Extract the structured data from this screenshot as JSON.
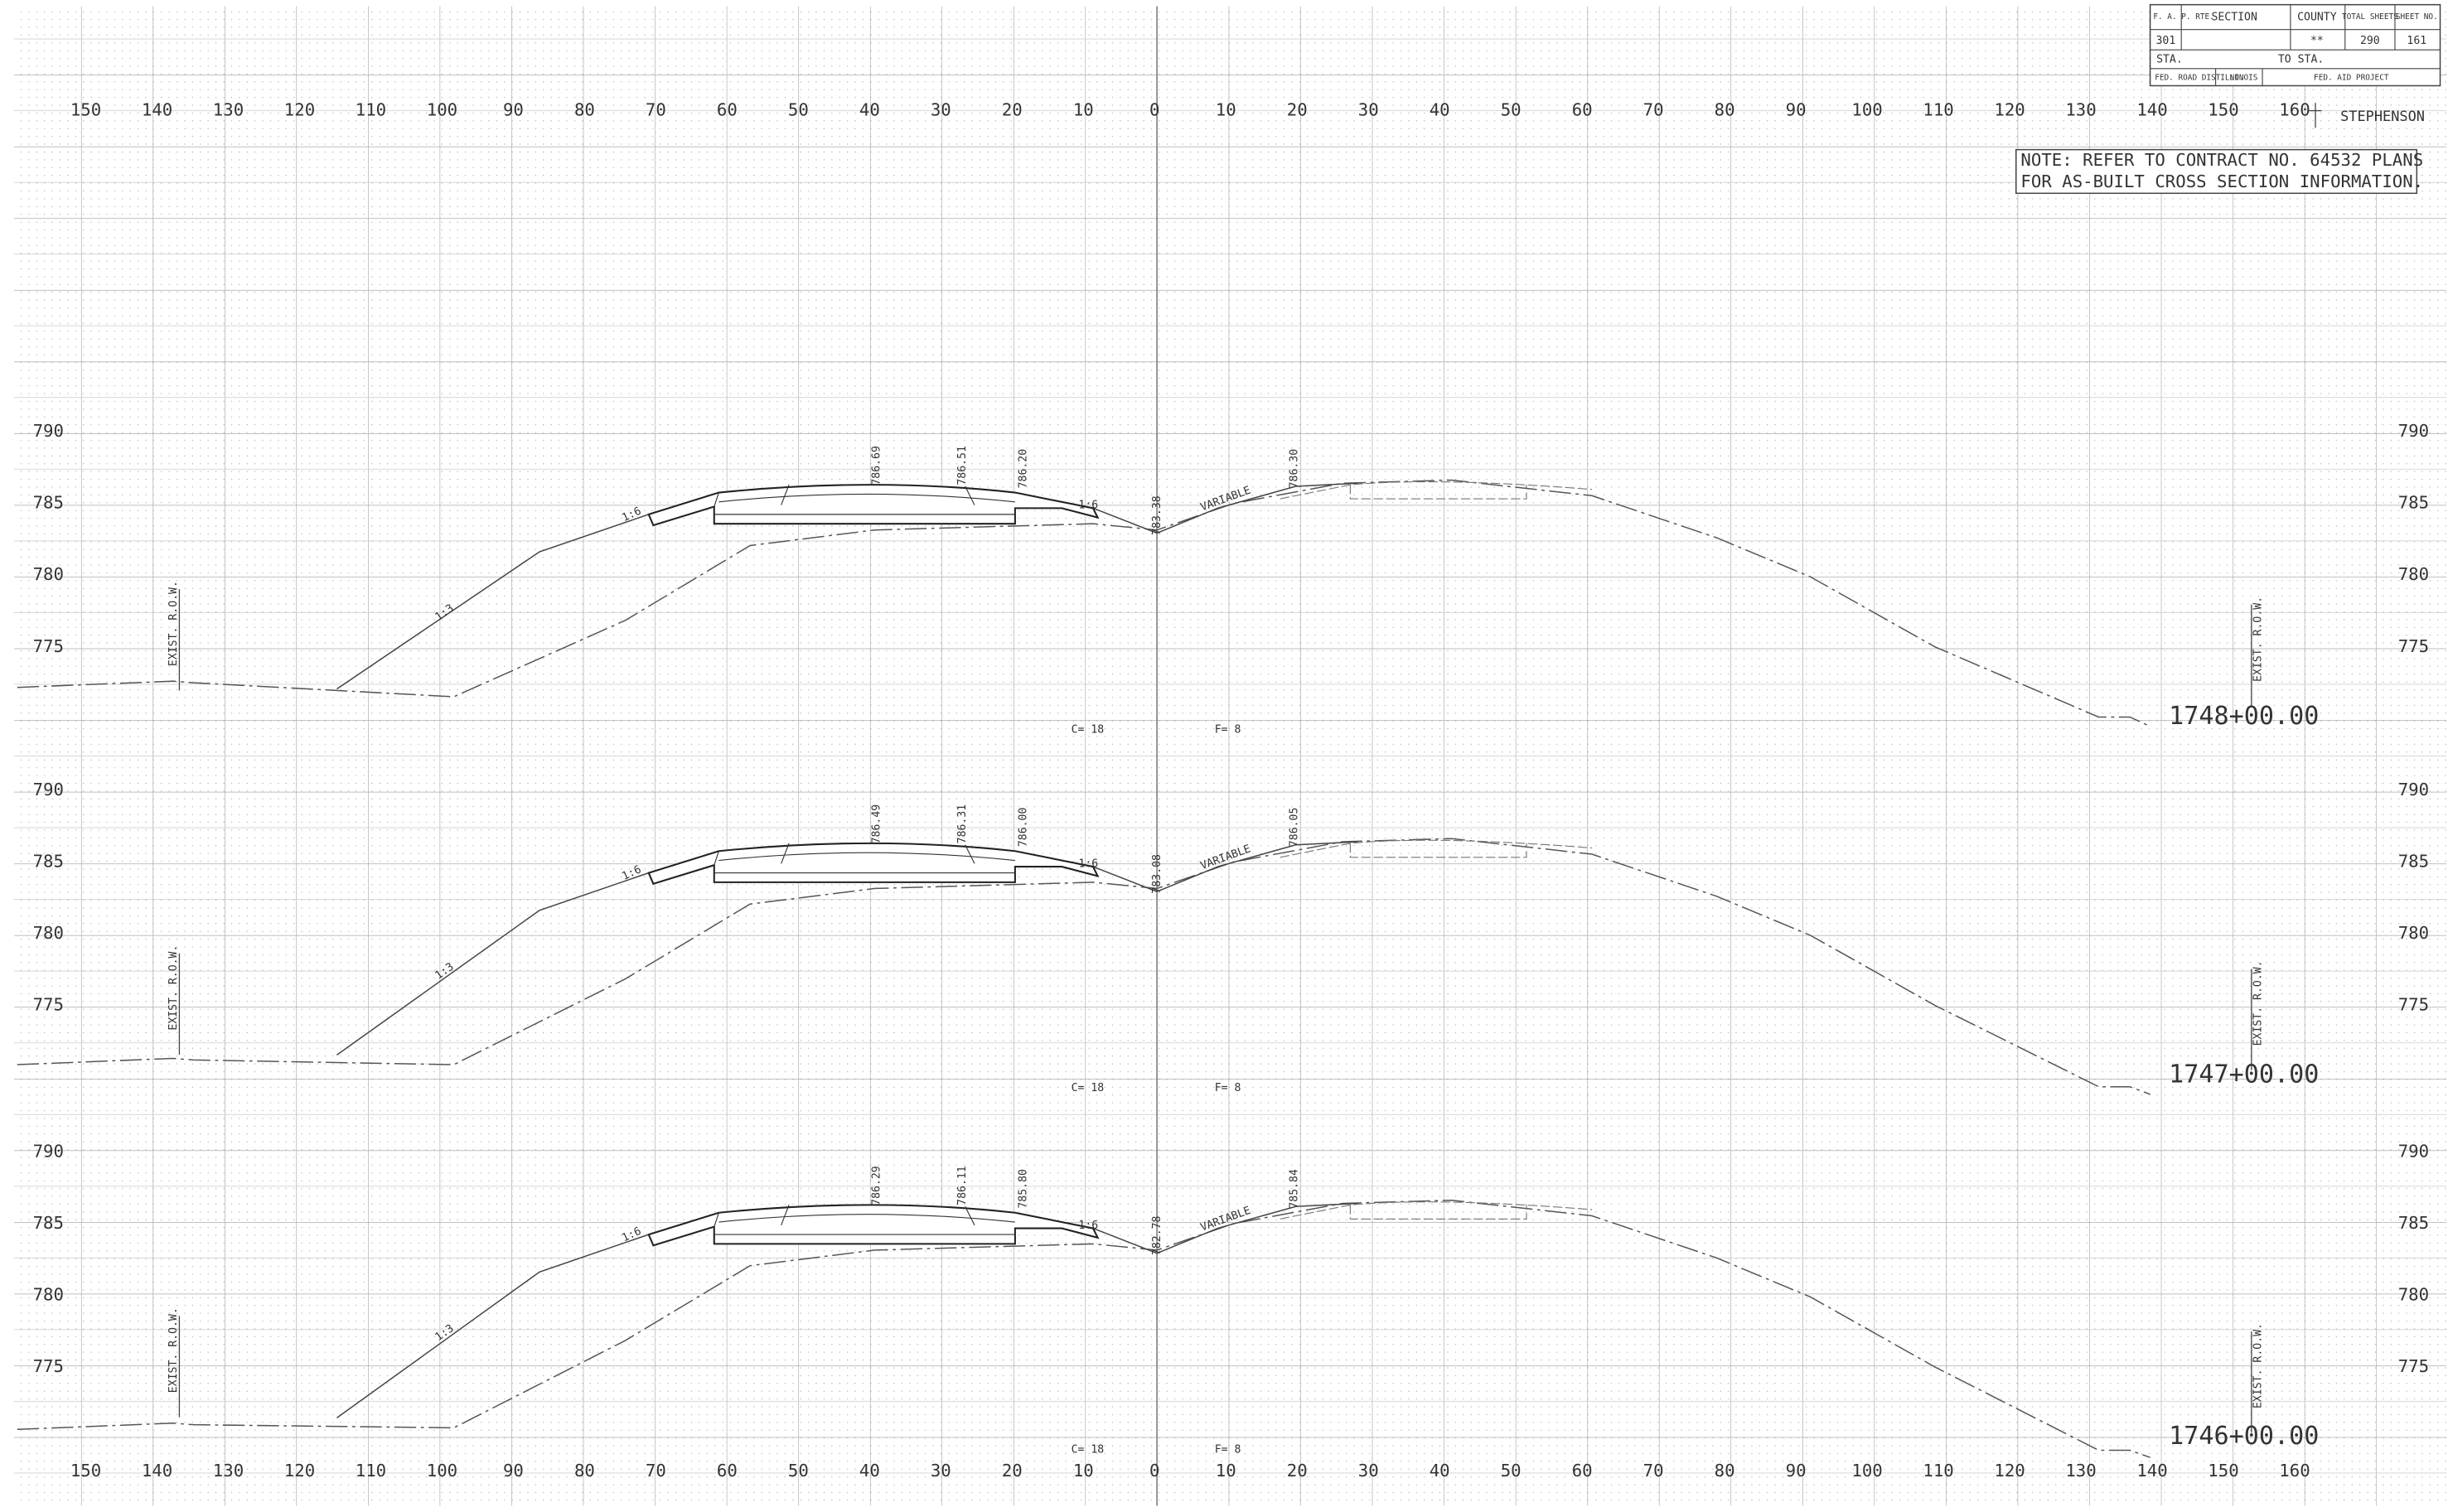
{
  "title_block": {
    "route_label": "F. A. P. RTE.",
    "section_label": "SECTION",
    "county_label": "COUNTY",
    "total_sheets_label": "TOTAL SHEETS",
    "sheet_no_label": "SHEET NO.",
    "route": "301",
    "county": "**",
    "total_sheets": "290",
    "sheet_no": "161",
    "sta_label": "STA.",
    "to_sta_label": "TO STA.",
    "district_label": "FED. ROAD DIST. NO.",
    "state": "ILLINOIS",
    "project_label": "FED. AID PROJECT"
  },
  "centerline": "STEPHENSON",
  "note": [
    "NOTE:  REFER TO CONTRACT NO. 64532 PLANS",
    "FOR AS-BUILT CROSS SECTION INFORMATION."
  ],
  "top_scale": [
    150,
    140,
    130,
    120,
    110,
    100,
    90,
    80,
    70,
    60,
    50,
    40,
    30,
    20,
    10,
    0,
    10,
    20,
    30,
    40,
    50,
    60,
    70,
    80,
    90,
    100,
    110,
    120,
    130,
    140,
    150,
    160
  ],
  "bottom_scale": [
    150,
    140,
    130,
    120,
    110,
    100,
    90,
    80,
    70,
    60,
    50,
    40,
    30,
    20,
    10,
    0,
    10,
    20,
    30,
    40,
    50,
    60,
    70,
    80,
    90,
    100,
    110,
    120,
    130,
    140,
    150,
    160
  ],
  "sections": [
    {
      "station": "1748+00.00",
      "elevations": [
        790,
        785,
        780,
        775
      ],
      "row_left": "EXIST. R.O.W.",
      "row_right": "EXIST. R.O.W.",
      "cut": "C= 18",
      "fill": "F= 8",
      "grade_labels": [
        "786.69",
        "786.51",
        "786.20",
        "783.38",
        "786.30"
      ],
      "slopes": [
        "1:6",
        "1:3",
        "1:6",
        "VARIABLE"
      ]
    },
    {
      "station": "1747+00.00",
      "elevations": [
        790,
        785,
        780,
        775
      ],
      "row_left": "EXIST. R.O.W.",
      "row_right": "EXIST. R.O.W.",
      "cut": "C= 18",
      "fill": "F= 8",
      "grade_labels": [
        "786.49",
        "786.31",
        "786.00",
        "783.08",
        "786.05"
      ],
      "slopes": [
        "1:6",
        "1:3",
        "1:6",
        "VARIABLE"
      ]
    },
    {
      "station": "1746+00.00",
      "elevations": [
        790,
        785,
        780,
        775
      ],
      "row_left": "EXIST. R.O.W.",
      "row_right": "EXIST. R.O.W.",
      "cut": "C= 18",
      "fill": "F= 8",
      "grade_labels": [
        "786.29",
        "786.11",
        "785.80",
        "782.78",
        "785.84"
      ],
      "slopes": [
        "1:6",
        "1:3",
        "1:6",
        "VARIABLE"
      ]
    }
  ]
}
